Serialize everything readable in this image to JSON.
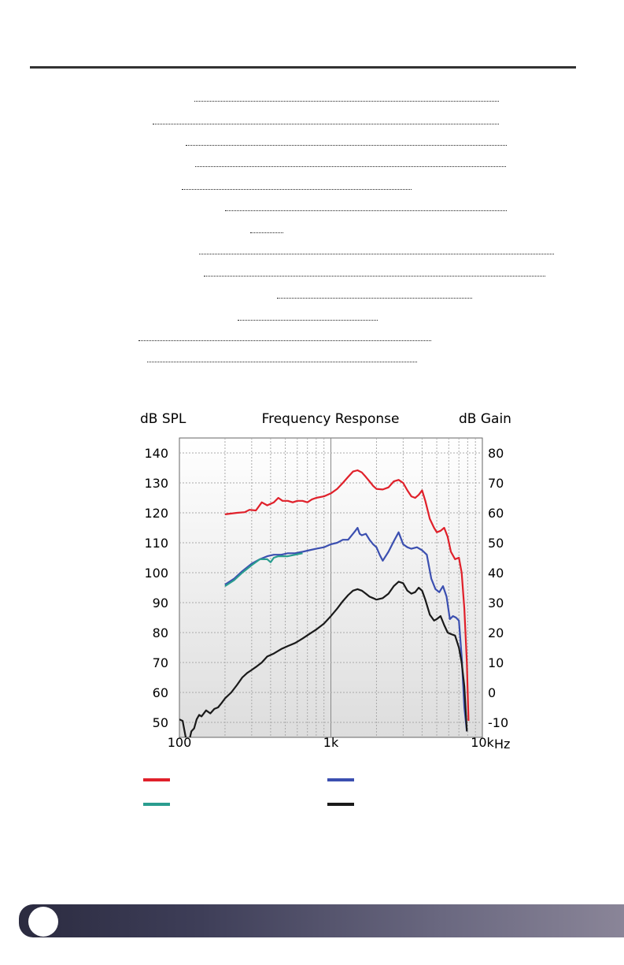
{
  "chart_data": {
    "type": "line",
    "title": "Frequency Response",
    "ylabel_left": "dB SPL",
    "ylabel_right": "dB Gain",
    "x_unit": "Hz",
    "x_scale": "log",
    "xlim": [
      100,
      10000
    ],
    "ylim_left": [
      45,
      145
    ],
    "ylim_right": [
      -15,
      85
    ],
    "x_ticks": [
      {
        "value": 100,
        "label": "100"
      },
      {
        "value": 1000,
        "label": "1k"
      },
      {
        "value": 10000,
        "label": "10k"
      }
    ],
    "y_ticks_left": [
      "140",
      "130",
      "120",
      "110",
      "100",
      "90",
      "80",
      "70",
      "60",
      "50"
    ],
    "y_ticks_right": [
      "80",
      "70",
      "60",
      "50",
      "40",
      "30",
      "20",
      "10",
      "0",
      "-10"
    ],
    "grid": true,
    "series": [
      {
        "color": "#e0202a",
        "x": [
          200,
          240,
          270,
          290,
          320,
          350,
          380,
          420,
          450,
          480,
          520,
          560,
          600,
          650,
          700,
          750,
          800,
          900,
          1000,
          1100,
          1200,
          1300,
          1400,
          1500,
          1600,
          1700,
          1800,
          1900,
          2000,
          2200,
          2400,
          2600,
          2800,
          3000,
          3200,
          3400,
          3600,
          3800,
          4000,
          4200,
          4500,
          4800,
          5000,
          5300,
          5600,
          5900,
          6200,
          6600,
          7000,
          7300,
          7600,
          7900,
          8100
        ],
        "values": [
          119.5,
          120.0,
          120.2,
          121.0,
          120.8,
          123.5,
          122.5,
          123.5,
          125.0,
          124.0,
          124.0,
          123.5,
          124.0,
          124.0,
          123.5,
          124.5,
          125.0,
          125.5,
          126.5,
          128.0,
          130.0,
          132.0,
          133.8,
          134.2,
          133.5,
          132.0,
          130.5,
          129.0,
          128.0,
          127.8,
          128.5,
          130.5,
          131.0,
          130.0,
          127.5,
          125.5,
          125.0,
          126.0,
          127.5,
          124.0,
          118.0,
          115.0,
          113.5,
          114.0,
          115.0,
          112.0,
          107.0,
          104.5,
          105.0,
          100.0,
          88.0,
          70.0,
          50.5
        ]
      },
      {
        "color": "#3b4fb0",
        "x": [
          200,
          230,
          260,
          300,
          340,
          380,
          420,
          470,
          520,
          580,
          650,
          720,
          800,
          900,
          1000,
          1100,
          1200,
          1300,
          1400,
          1450,
          1500,
          1550,
          1600,
          1700,
          1800,
          1900,
          2000,
          2100,
          2200,
          2400,
          2600,
          2800,
          3000,
          3200,
          3400,
          3700,
          4000,
          4300,
          4600,
          4900,
          5200,
          5500,
          5800,
          6100,
          6400,
          6700,
          7000,
          7300,
          7600,
          7900
        ],
        "values": [
          96.0,
          98.0,
          100.5,
          103.0,
          104.5,
          105.5,
          106.0,
          106.0,
          106.5,
          106.5,
          107.0,
          107.5,
          108.0,
          108.5,
          109.5,
          110.0,
          111.0,
          111.0,
          113.0,
          114.0,
          115.0,
          113.0,
          112.5,
          113.0,
          111.0,
          109.5,
          108.5,
          106.0,
          104.0,
          107.0,
          110.5,
          113.5,
          109.5,
          108.5,
          108.0,
          108.5,
          107.5,
          106.0,
          98.0,
          94.5,
          93.5,
          95.5,
          92.0,
          84.5,
          85.5,
          85.0,
          84.0,
          72.0,
          55.0,
          47.0
        ]
      },
      {
        "color": "#2a9d8f",
        "x": [
          200,
          230,
          260,
          300,
          340,
          380,
          400,
          420,
          450,
          480,
          520,
          580,
          650
        ],
        "values": [
          95.5,
          97.5,
          100.0,
          102.5,
          104.5,
          104.5,
          103.5,
          105.0,
          105.5,
          105.5,
          105.5,
          106.0,
          106.5
        ]
      },
      {
        "color": "#1a1a1a",
        "x": [
          100,
          105,
          110,
          115,
          120,
          125,
          130,
          135,
          140,
          150,
          160,
          170,
          180,
          190,
          200,
          220,
          240,
          260,
          280,
          300,
          320,
          350,
          380,
          420,
          470,
          520,
          580,
          650,
          720,
          800,
          900,
          1000,
          1100,
          1200,
          1300,
          1400,
          1500,
          1600,
          1700,
          1800,
          1900,
          2000,
          2200,
          2400,
          2600,
          2800,
          3000,
          3200,
          3400,
          3600,
          3800,
          4000,
          4200,
          4500,
          4800,
          5000,
          5300,
          5600,
          5900,
          6200,
          6600,
          7000,
          7300,
          7600,
          7900
        ],
        "values": [
          51.0,
          50.5,
          45.0,
          43.0,
          47.0,
          48.0,
          51.0,
          52.5,
          52.0,
          54.0,
          53.0,
          54.5,
          55.0,
          56.5,
          58.0,
          60.0,
          62.5,
          65.0,
          66.5,
          67.5,
          68.5,
          70.0,
          72.0,
          73.0,
          74.5,
          75.5,
          76.5,
          78.0,
          79.5,
          81.0,
          83.0,
          85.5,
          88.0,
          90.5,
          92.5,
          94.0,
          94.5,
          94.0,
          93.0,
          92.0,
          91.5,
          91.0,
          91.5,
          93.0,
          95.5,
          97.0,
          96.5,
          94.0,
          93.0,
          93.5,
          95.0,
          94.0,
          91.0,
          86.0,
          84.0,
          84.5,
          85.5,
          82.5,
          80.0,
          79.5,
          79.0,
          75.0,
          70.0,
          62.0,
          47.0
        ]
      }
    ]
  }
}
